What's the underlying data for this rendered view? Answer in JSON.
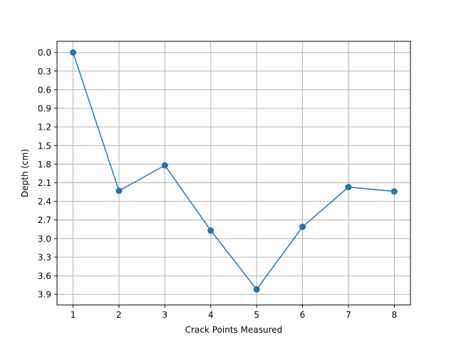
{
  "chart_data": {
    "type": "line",
    "title": "",
    "xlabel": "Crack Points Measured",
    "ylabel": "Depth (cm)",
    "x": [
      1,
      2,
      3,
      4,
      5,
      6,
      7,
      8
    ],
    "series": [
      {
        "values": [
          0.0,
          2.23,
          1.82,
          2.87,
          3.82,
          2.81,
          2.17,
          2.24
        ],
        "color": "#1f77b4"
      }
    ],
    "xlim": [
      0.65,
      8.35
    ],
    "ylim": [
      4.07,
      -0.18
    ],
    "y_inverted": true,
    "xticks": [
      1,
      2,
      3,
      4,
      5,
      6,
      7,
      8
    ],
    "xtick_labels": [
      "1",
      "2",
      "3",
      "4",
      "5",
      "6",
      "7",
      "8"
    ],
    "yticks": [
      0.0,
      0.3,
      0.6,
      0.9,
      1.2,
      1.5,
      1.8,
      2.1,
      2.4,
      2.7,
      3.0,
      3.3,
      3.6,
      3.9
    ],
    "ytick_labels": [
      "0.0",
      "0.3",
      "0.6",
      "0.9",
      "1.2",
      "1.5",
      "1.8",
      "2.1",
      "2.4",
      "2.7",
      "3.0",
      "3.3",
      "3.6",
      "3.9"
    ],
    "grid": true,
    "marker": "circle",
    "grid_color": "#b0b0b0"
  }
}
